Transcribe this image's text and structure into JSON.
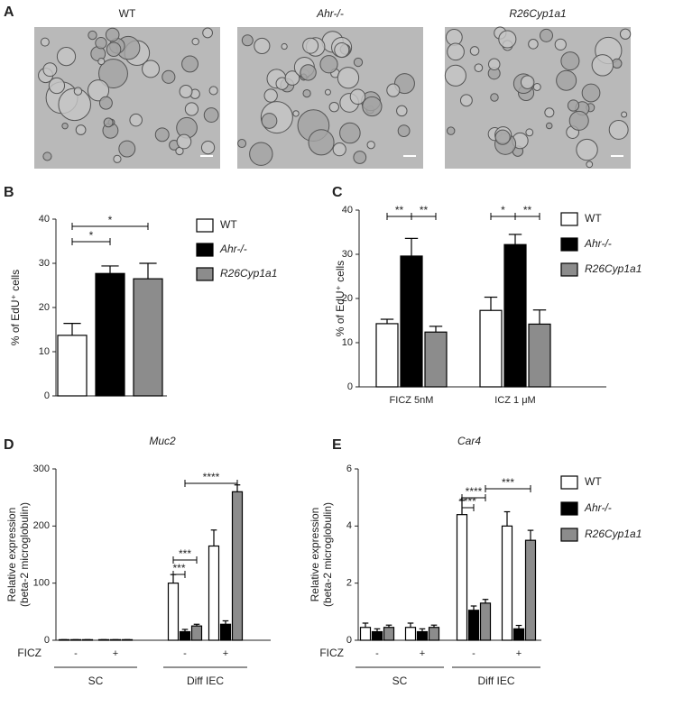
{
  "panel_a": {
    "letter": "A",
    "images": [
      "WT",
      "Ahr-/-",
      "R26Cyp1a1"
    ]
  },
  "chart_data": [
    {
      "type": "bar",
      "panel": "B",
      "ylabel": [
        "% of EdU⁺ cells"
      ],
      "categories": [
        null
      ],
      "series": [
        {
          "name": "WT",
          "color": "#ffffff",
          "values": [
            13.7
          ],
          "errors": [
            2.7
          ]
        },
        {
          "name": "Ahr-/-",
          "color": "#000000",
          "values": [
            27.7
          ],
          "errors": [
            1.7
          ]
        },
        {
          "name": "R26Cyp1a1",
          "color": "#8c8c8c",
          "values": [
            26.5
          ],
          "errors": [
            3.5
          ]
        }
      ],
      "ylim": [
        0,
        40
      ],
      "yticks": [
        0,
        10,
        20,
        30,
        40
      ],
      "annotations": [
        "*",
        "*"
      ]
    },
    {
      "type": "bar",
      "panel": "C",
      "ylabel": [
        "% of EdU⁺ cells"
      ],
      "categories": [
        "FICZ 5nM",
        "ICZ 1 μM"
      ],
      "series": [
        {
          "name": "WT",
          "color": "#ffffff",
          "values": [
            14.3,
            17.3
          ],
          "errors": [
            1.0,
            3.0
          ]
        },
        {
          "name": "Ahr-/-",
          "color": "#000000",
          "values": [
            29.6,
            32.2
          ],
          "errors": [
            4.0,
            2.3
          ]
        },
        {
          "name": "R26Cyp1a1",
          "color": "#8c8c8c",
          "values": [
            12.4,
            14.2
          ],
          "errors": [
            1.3,
            3.2
          ]
        }
      ],
      "ylim": [
        0,
        40
      ],
      "yticks": [
        0,
        10,
        20,
        30,
        40
      ],
      "annotations": [
        "**",
        "**",
        "*",
        "**"
      ]
    },
    {
      "type": "bar",
      "panel": "D",
      "title": "Muc2",
      "ylabel": [
        "Relative expression",
        "(beta-2 microglobulin)"
      ],
      "row_label": "FICZ",
      "categories": [
        "-",
        "+",
        "-",
        "+"
      ],
      "groups": [
        "SC",
        "Diff IEC"
      ],
      "series": [
        {
          "color": "#ffffff",
          "values": [
            1,
            1,
            100,
            165
          ],
          "errors": [
            0,
            0,
            15,
            28
          ]
        },
        {
          "color": "#000000",
          "values": [
            1,
            1,
            15,
            28
          ],
          "errors": [
            0,
            0,
            4,
            6
          ]
        },
        {
          "color": "#8c8c8c",
          "values": [
            1,
            1,
            25,
            260
          ],
          "errors": [
            0,
            0,
            3,
            12
          ]
        }
      ],
      "ylim": [
        0,
        300
      ],
      "yticks": [
        0,
        100,
        200,
        300
      ],
      "annotations": [
        "***",
        "***",
        "****"
      ]
    },
    {
      "type": "bar",
      "panel": "E",
      "title": "Car4",
      "ylabel": [
        "Relative expression",
        "(beta-2 microglobulin)"
      ],
      "row_label": "FICZ",
      "categories": [
        "-",
        "+",
        "-",
        "+"
      ],
      "groups": [
        "SC",
        "Diff IEC"
      ],
      "series": [
        {
          "name": "WT",
          "color": "#ffffff",
          "values": [
            0.45,
            0.45,
            4.4,
            4.0
          ],
          "errors": [
            0.15,
            0.15,
            0.5,
            0.5
          ]
        },
        {
          "name": "Ahr-/-",
          "color": "#000000",
          "values": [
            0.3,
            0.3,
            1.05,
            0.4
          ],
          "errors": [
            0.1,
            0.1,
            0.15,
            0.12
          ]
        },
        {
          "name": "R26Cyp1a1",
          "color": "#8c8c8c",
          "values": [
            0.45,
            0.45,
            1.3,
            3.5
          ],
          "errors": [
            0.08,
            0.08,
            0.13,
            0.35
          ]
        }
      ],
      "ylim": [
        0,
        6
      ],
      "yticks": [
        0,
        2,
        4,
        6
      ],
      "annotations": [
        "****",
        "****",
        "***"
      ]
    }
  ]
}
